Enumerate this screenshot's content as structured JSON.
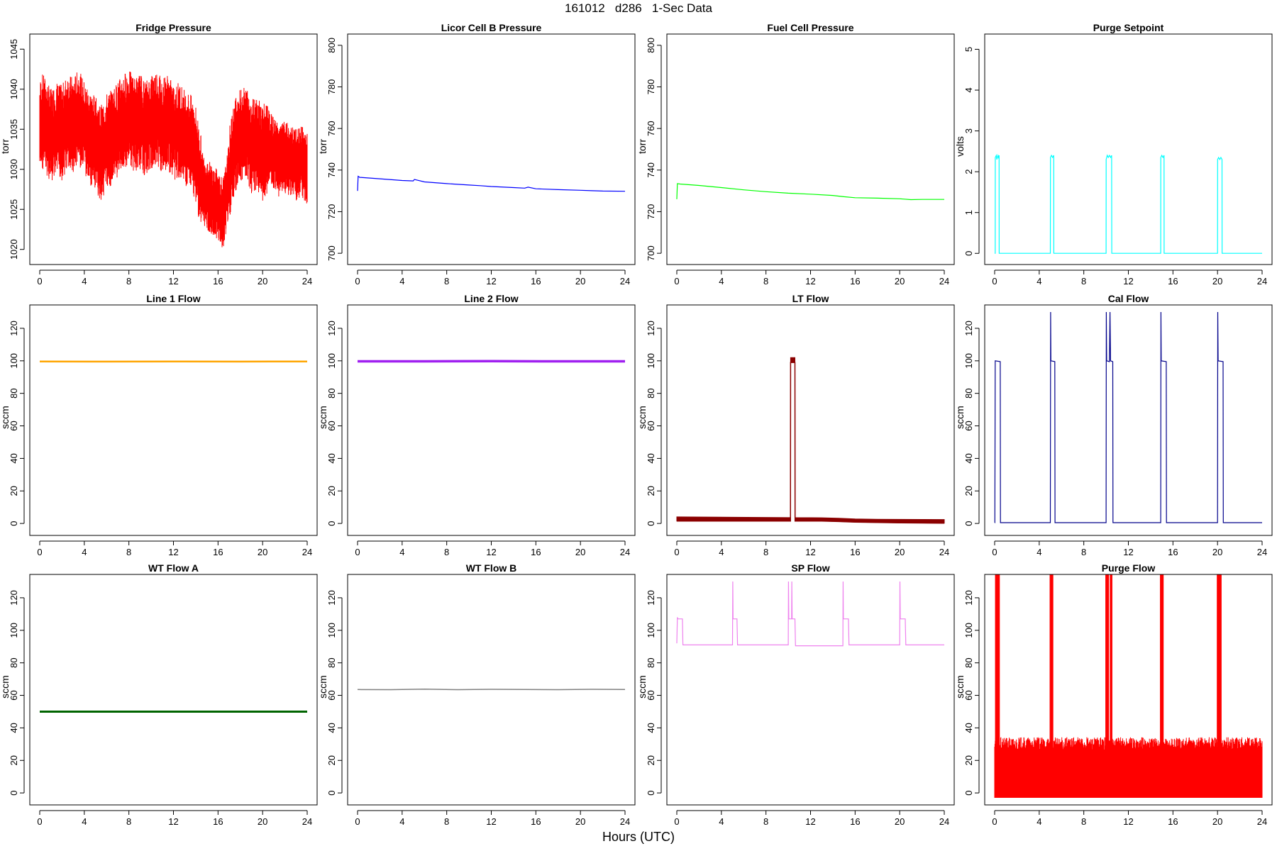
{
  "page": {
    "title": "161012   d286   1-Sec Data",
    "x_caption": "Hours (UTC)"
  },
  "chart_data": [
    {
      "type": "line",
      "title": "Fridge Pressure",
      "ylabel": "torr",
      "color": "#ff0000",
      "xlim": [
        0,
        24
      ],
      "ylim": [
        1019,
        1046
      ],
      "xticks": [
        0,
        4,
        8,
        12,
        16,
        20,
        24
      ],
      "yticks": [
        1020,
        1025,
        1030,
        1035,
        1040,
        1045
      ],
      "x": [
        0,
        0.2,
        0.5,
        1,
        1.5,
        2,
        2.5,
        3,
        3.5,
        4,
        4.5,
        5,
        5.5,
        6,
        6.5,
        7,
        7.5,
        8,
        8.5,
        9,
        9.5,
        10,
        10.5,
        11,
        11.5,
        12,
        12.5,
        13,
        13.5,
        14,
        14.5,
        15,
        15.5,
        16,
        16.5,
        17,
        17.5,
        18,
        18.5,
        19,
        19.5,
        20,
        20.5,
        21,
        21.5,
        22,
        22.5,
        23,
        23.5,
        24
      ],
      "y": [
        1035,
        1036,
        1035.5,
        1034,
        1035,
        1034.5,
        1036,
        1035.5,
        1036.5,
        1035,
        1034,
        1033,
        1032,
        1033.5,
        1034,
        1035,
        1036,
        1036.5,
        1035.5,
        1036,
        1035,
        1036,
        1036.5,
        1035.5,
        1036,
        1034.5,
        1035,
        1034,
        1033.5,
        1032,
        1028,
        1027,
        1026,
        1025.5,
        1024.5,
        1029,
        1033,
        1034,
        1034.5,
        1033,
        1033.5,
        1032,
        1033,
        1032,
        1031,
        1031.5,
        1031,
        1030.5,
        1031,
        1030
      ],
      "spread": [
        4,
        4,
        4,
        4,
        4,
        4,
        4,
        4,
        4,
        4,
        4,
        4,
        4,
        4,
        4,
        4,
        4,
        4,
        4,
        4,
        4,
        4,
        4,
        4,
        4,
        4,
        4,
        4,
        4,
        4,
        3,
        3,
        3,
        3,
        3,
        4,
        4,
        4,
        4,
        4,
        4,
        4,
        3,
        3,
        3,
        3,
        3,
        3,
        3,
        3
      ]
    },
    {
      "type": "line",
      "title": "Licor Cell B Pressure",
      "ylabel": "torr",
      "color": "#0000ff",
      "xlim": [
        0,
        24
      ],
      "ylim": [
        698,
        802
      ],
      "xticks": [
        0,
        4,
        8,
        12,
        16,
        20,
        24
      ],
      "yticks": [
        700,
        720,
        740,
        760,
        780,
        800
      ],
      "x": [
        0,
        0.05,
        0.2,
        2,
        4,
        5,
        5.1,
        6,
        8,
        10,
        11,
        12,
        14,
        15,
        15.3,
        16,
        18,
        20,
        21,
        22,
        24
      ],
      "y": [
        730,
        737,
        736.5,
        735.8,
        735,
        734.8,
        735.5,
        734.3,
        733.5,
        732.8,
        732.5,
        732.1,
        731.6,
        731.3,
        731.8,
        731,
        730.6,
        730.3,
        730.1,
        729.9,
        729.8
      ]
    },
    {
      "type": "line",
      "title": "Fuel Cell Pressure",
      "ylabel": "torr",
      "color": "#00ff00",
      "xlim": [
        0,
        24
      ],
      "ylim": [
        698,
        802
      ],
      "xticks": [
        0,
        4,
        8,
        12,
        16,
        20,
        24
      ],
      "yticks": [
        700,
        720,
        740,
        760,
        780,
        800
      ],
      "x": [
        0,
        0.05,
        0.3,
        2,
        4,
        6,
        8,
        10,
        12,
        14,
        15,
        16,
        18,
        20,
        21,
        22,
        24
      ],
      "y": [
        726,
        733.5,
        733.3,
        732.6,
        731.6,
        730.5,
        729.6,
        728.9,
        728.4,
        727.8,
        727.2,
        726.7,
        726.5,
        726.2,
        725.8,
        725.9,
        725.9
      ]
    },
    {
      "type": "line",
      "title": "Purge Setpoint",
      "ylabel": "volts",
      "color": "#00ffff",
      "xlim": [
        0,
        24
      ],
      "ylim": [
        -0.1,
        5.2
      ],
      "xticks": [
        0,
        4,
        8,
        12,
        16,
        20,
        24
      ],
      "yticks": [
        0,
        1,
        2,
        3,
        4,
        5
      ],
      "x": [
        0,
        0.05,
        0.06,
        0.15,
        0.2,
        0.3,
        0.35,
        0.4,
        0.41,
        5,
        5.01,
        5.1,
        5.2,
        5.3,
        5.31,
        10,
        10.01,
        10.1,
        10.2,
        10.3,
        10.4,
        10.5,
        10.51,
        14.9,
        14.91,
        15,
        15.1,
        15.2,
        15.21,
        20,
        20.01,
        20.1,
        20.2,
        20.3,
        20.4,
        20.41,
        24
      ],
      "y": [
        0,
        0,
        2.35,
        2.4,
        2.3,
        2.4,
        2.35,
        2.4,
        0,
        0,
        2.35,
        2.4,
        2.35,
        2.4,
        0,
        0,
        2.3,
        2.4,
        2.35,
        2.4,
        2.35,
        2.4,
        0,
        0,
        2.35,
        2.4,
        2.35,
        2.4,
        0,
        0,
        2.3,
        2.35,
        2.3,
        2.35,
        2.3,
        0,
        0
      ]
    },
    {
      "type": "line",
      "title": "Line 1 Flow",
      "ylabel": "sccm",
      "color": "#ffa500",
      "xlim": [
        0,
        24
      ],
      "ylim": [
        -3,
        130
      ],
      "xticks": [
        0,
        4,
        8,
        12,
        16,
        20,
        24
      ],
      "yticks": [
        0,
        20,
        40,
        60,
        80,
        100,
        120
      ],
      "x": [
        0,
        6,
        12,
        18,
        24
      ],
      "y": [
        99.6,
        99.5,
        99.6,
        99.5,
        99.6
      ],
      "line_width": 2.5
    },
    {
      "type": "line",
      "title": "Line 2 Flow",
      "ylabel": "sccm",
      "color": "#a020f0",
      "xlim": [
        0,
        24
      ],
      "ylim": [
        -3,
        130
      ],
      "xticks": [
        0,
        4,
        8,
        12,
        16,
        20,
        24
      ],
      "yticks": [
        0,
        20,
        40,
        60,
        80,
        100,
        120
      ],
      "x": [
        0,
        6,
        12,
        18,
        24
      ],
      "y": [
        99.7,
        99.7,
        99.8,
        99.7,
        99.7
      ],
      "line_width": 3.5
    },
    {
      "type": "line",
      "title": "LT Flow",
      "ylabel": "sccm",
      "color": "#8b0000",
      "xlim": [
        0,
        24
      ],
      "ylim": [
        -3,
        130
      ],
      "xticks": [
        0,
        4,
        8,
        12,
        16,
        20,
        24
      ],
      "yticks": [
        0,
        20,
        40,
        60,
        80,
        100,
        120
      ],
      "x": [
        0,
        5,
        10.2,
        10.21,
        10.6,
        10.61,
        13,
        14.5,
        16,
        18,
        20,
        24
      ],
      "y": [
        1.5,
        1.5,
        1.5,
        99,
        99,
        1.5,
        1.5,
        1.2,
        0.8,
        0.6,
        0.4,
        0.2
      ],
      "band_top": [
        4,
        3.8,
        3.6,
        102,
        102,
        3.6,
        3.5,
        3.2,
        2.8,
        2.6,
        2.5,
        2.4
      ],
      "line_width": 1.5
    },
    {
      "type": "line",
      "title": "Cal Flow",
      "ylabel": "sccm",
      "color": "#00008b",
      "xlim": [
        0,
        24
      ],
      "ylim": [
        -3,
        130
      ],
      "xticks": [
        0,
        4,
        8,
        12,
        16,
        20,
        24
      ],
      "yticks": [
        0,
        20,
        40,
        60,
        80,
        100,
        120
      ],
      "x": [
        0,
        0.02,
        0.05,
        0.5,
        0.52,
        5,
        5.02,
        5.05,
        5.4,
        5.42,
        10,
        10.02,
        10.05,
        10.3,
        10.35,
        10.4,
        10.6,
        10.62,
        14.9,
        14.92,
        14.95,
        15.4,
        15.42,
        20,
        20.02,
        20.05,
        20.5,
        20.52,
        24
      ],
      "y": [
        0.5,
        0.5,
        100,
        99.5,
        0.5,
        0.5,
        130,
        100,
        99.5,
        0.5,
        0.5,
        130,
        100,
        99.5,
        130,
        100,
        99.5,
        0.5,
        0.5,
        130,
        100,
        99.5,
        0.5,
        0.5,
        130,
        100,
        99.5,
        0.5,
        0.5
      ]
    },
    {
      "type": "line",
      "title": "WT Flow A",
      "ylabel": "sccm",
      "color": "#006400",
      "xlim": [
        0,
        24
      ],
      "ylim": [
        -3,
        130
      ],
      "xticks": [
        0,
        4,
        8,
        12,
        16,
        20,
        24
      ],
      "yticks": [
        0,
        20,
        40,
        60,
        80,
        100,
        120
      ],
      "x": [
        0,
        6,
        12,
        18,
        24
      ],
      "y": [
        50,
        50,
        50,
        50,
        50
      ],
      "line_width": 3
    },
    {
      "type": "line",
      "title": "WT Flow B",
      "ylabel": "sccm",
      "color": "#808080",
      "xlim": [
        0,
        24
      ],
      "ylim": [
        -3,
        130
      ],
      "xticks": [
        0,
        4,
        8,
        12,
        16,
        20,
        24
      ],
      "yticks": [
        0,
        20,
        40,
        60,
        80,
        100,
        120
      ],
      "x": [
        0,
        3,
        6,
        9,
        12,
        15,
        18,
        21,
        24
      ],
      "y": [
        63.6,
        63.5,
        63.8,
        63.5,
        63.7,
        63.6,
        63.5,
        63.7,
        63.6
      ],
      "line_width": 1.5
    },
    {
      "type": "line",
      "title": "SP Flow",
      "ylabel": "sccm",
      "color": "#ee82ee",
      "xlim": [
        0,
        24
      ],
      "ylim": [
        -3,
        130
      ],
      "xticks": [
        0,
        4,
        8,
        12,
        16,
        20,
        24
      ],
      "yticks": [
        0,
        20,
        40,
        60,
        80,
        100,
        120
      ],
      "x": [
        0,
        0.05,
        0.1,
        0.5,
        0.55,
        5,
        5.02,
        5.05,
        5.4,
        5.45,
        10,
        10.02,
        10.05,
        10.3,
        10.32,
        10.35,
        10.6,
        10.65,
        14.9,
        14.92,
        14.95,
        15.4,
        15.45,
        20,
        20.02,
        20.05,
        20.5,
        20.55,
        24
      ],
      "y": [
        92,
        108,
        107,
        107,
        91,
        91,
        130,
        107,
        107,
        91,
        91,
        130,
        107,
        107,
        130,
        107,
        107,
        90.5,
        90.5,
        130,
        107,
        107,
        91,
        91,
        130,
        107,
        107,
        91,
        91
      ]
    },
    {
      "type": "line",
      "title": "Purge Flow",
      "ylabel": "sccm",
      "color": "#ff0000",
      "xlim": [
        0,
        24
      ],
      "ylim": [
        -3,
        130
      ],
      "xticks": [
        0,
        4,
        8,
        12,
        16,
        20,
        24
      ],
      "yticks": [
        0,
        20,
        40,
        60,
        80,
        100,
        120
      ],
      "noise_low": -3,
      "noise_high": 32,
      "spike_x": [
        0.1,
        0.2,
        0.3,
        0.4,
        5,
        5.1,
        5.2,
        10,
        10.1,
        10.2,
        10.4,
        10.5,
        14.9,
        15,
        15.1,
        20,
        20.1,
        20.2,
        20.3
      ]
    }
  ]
}
